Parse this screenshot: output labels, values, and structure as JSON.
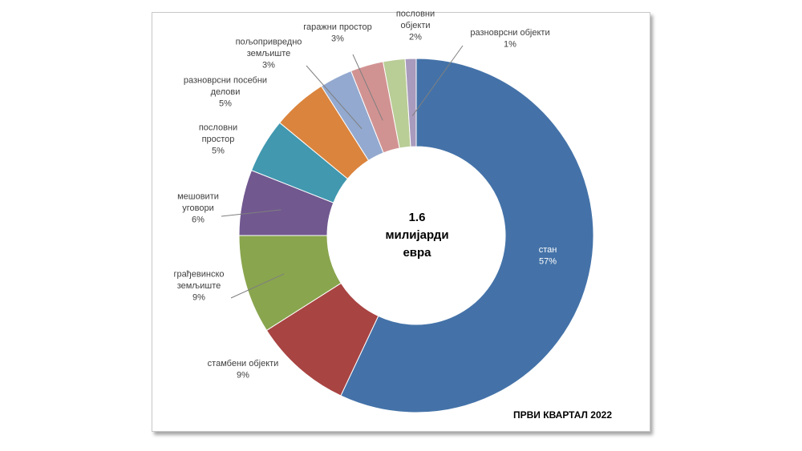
{
  "chart_data": {
    "type": "pie",
    "variant": "donut",
    "center_label": [
      "1.6",
      "милијарди",
      "евра"
    ],
    "footer": "ПРВИ КВАРТАЛ 2022",
    "slices": [
      {
        "label": [
          "стан"
        ],
        "value": 57,
        "display": "57%",
        "color": "#4472a8"
      },
      {
        "label": [
          "стамбени објекти"
        ],
        "value": 9,
        "display": "9%",
        "color": "#a84442"
      },
      {
        "label": [
          "грађевинско",
          "земљиште"
        ],
        "value": 9,
        "display": "9%",
        "color": "#89a54e"
      },
      {
        "label": [
          "мешовити",
          "уговори"
        ],
        "value": 6,
        "display": "6%",
        "color": "#71588f"
      },
      {
        "label": [
          "пословни",
          "простор"
        ],
        "value": 5,
        "display": "5%",
        "color": "#4198af"
      },
      {
        "label": [
          "разноврсни посебни",
          "делови"
        ],
        "value": 5,
        "display": "5%",
        "color": "#db843d"
      },
      {
        "label": [
          "пољопривредно",
          "земљиште"
        ],
        "value": 3,
        "display": "3%",
        "color": "#93a9cf"
      },
      {
        "label": [
          "гаражни простор"
        ],
        "value": 3,
        "display": "3%",
        "color": "#d19392"
      },
      {
        "label": [
          "пословни",
          "објекти"
        ],
        "value": 2,
        "display": "2%",
        "color": "#b9cd96"
      },
      {
        "label": [
          "разноврсни објекти"
        ],
        "value": 1,
        "display": "1%",
        "color": "#a99bbd"
      }
    ]
  }
}
